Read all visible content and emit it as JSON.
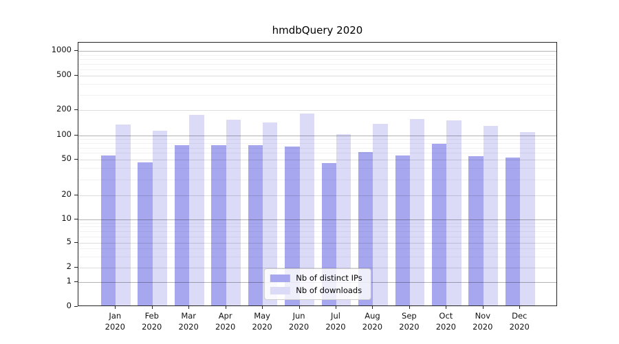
{
  "figure": {
    "background": "#ffffff",
    "title": "hmdbQuery 2020"
  },
  "chart_data": {
    "type": "bar",
    "title": "hmdbQuery 2020",
    "categories": [
      "Jan",
      "Feb",
      "Mar",
      "Apr",
      "May",
      "Jun",
      "Jul",
      "Aug",
      "Sep",
      "Oct",
      "Nov",
      "Dec"
    ],
    "year_label": "2020",
    "categories_full": [
      "Jan 2020",
      "Feb 2020",
      "Mar 2020",
      "Apr 2020",
      "May 2020",
      "Jun 2020",
      "Jul 2020",
      "Aug 2020",
      "Sep 2020",
      "Oct 2020",
      "Nov 2020",
      "Dec 2020"
    ],
    "series": [
      {
        "name": "Nb of distinct IPs",
        "color": "#a7a7ef",
        "values": [
          54,
          45,
          73,
          73,
          73,
          70,
          44,
          59,
          54,
          76,
          53,
          51
        ]
      },
      {
        "name": "Nb of downloads",
        "color": "#dbdbf8",
        "values": [
          129,
          109,
          169,
          148,
          137,
          176,
          100,
          132,
          150,
          146,
          124,
          105
        ]
      }
    ],
    "yscale": "symlog",
    "yticks": [
      0,
      1,
      2,
      5,
      10,
      20,
      50,
      100,
      200,
      500,
      1000
    ],
    "ylim": [
      0,
      1260
    ],
    "grid": true,
    "legend_position": "lower center",
    "xlabel": "",
    "ylabel": ""
  }
}
